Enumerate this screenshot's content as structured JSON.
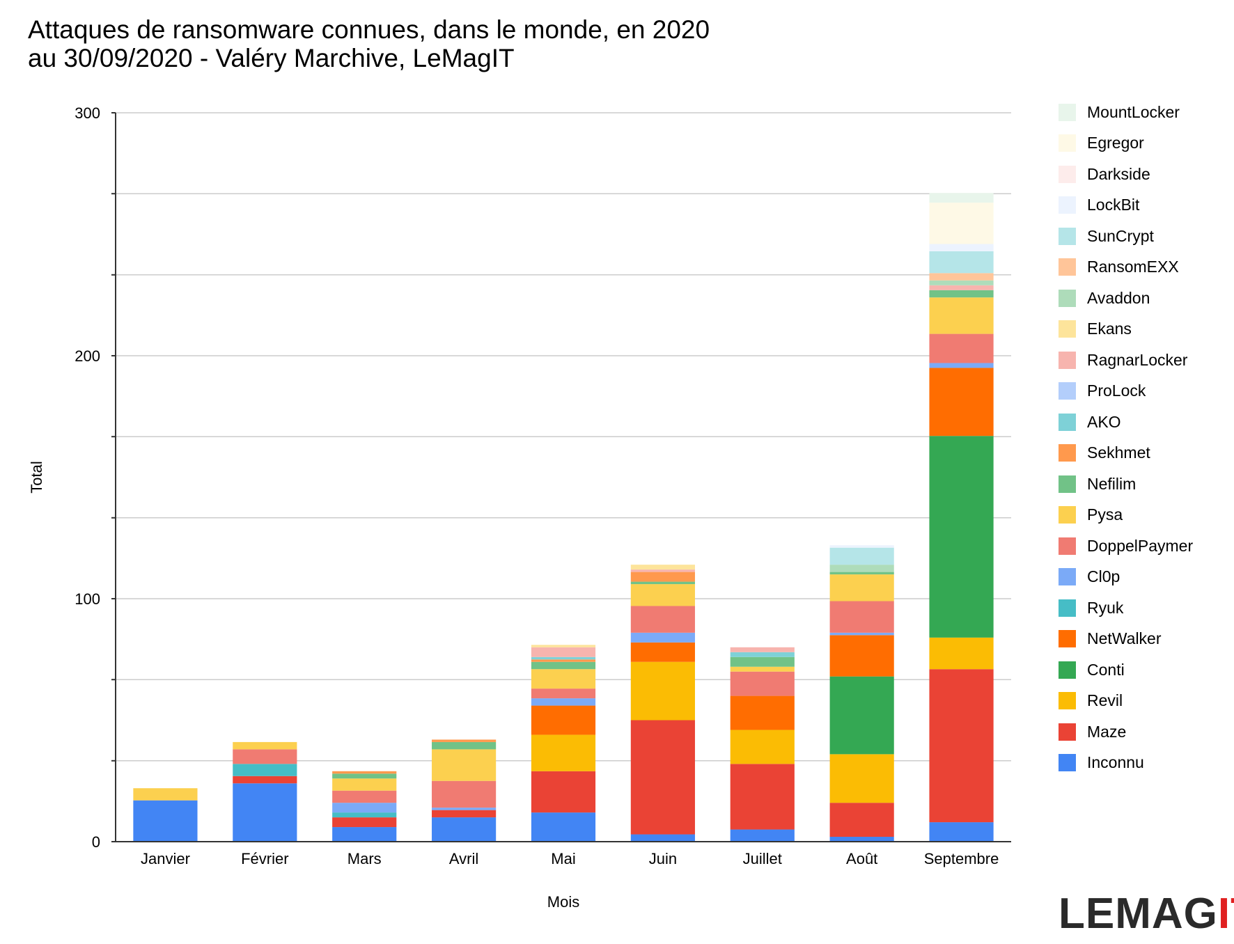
{
  "title": "Attaques de ransomware connues, dans le monde, en 2020",
  "subtitle": "au 30/09/2020 - Valéry Marchive, LeMagIT",
  "logo": {
    "main": "LEMAG",
    "accent": "IT",
    "accent_color": "#e02020"
  },
  "chart_data": {
    "type": "bar",
    "stacked": true,
    "title": "Attaques de ransomware connues, dans le monde, en 2020",
    "subtitle": "au 30/09/2020 - Valéry Marchive, LeMagIT",
    "xlabel": "Mois",
    "ylabel": "Total",
    "ylim": [
      0,
      300
    ],
    "yticks": [
      0,
      100,
      200,
      300
    ],
    "minor_ticks": [
      33.3,
      66.7,
      133.3,
      166.7,
      233.3,
      266.7
    ],
    "grid": true,
    "legend_position": "right",
    "categories": [
      "Janvier",
      "Février",
      "Mars",
      "Avril",
      "Mai",
      "Juin",
      "Juillet",
      "Août",
      "Septembre"
    ],
    "series": [
      {
        "name": "Inconnu",
        "color": "#4285f4",
        "values": [
          17,
          24,
          6,
          10,
          12,
          3,
          5,
          2,
          8
        ]
      },
      {
        "name": "Maze",
        "color": "#ea4335",
        "values": [
          0,
          3,
          4,
          3,
          17,
          47,
          27,
          14,
          63
        ]
      },
      {
        "name": "Revil",
        "color": "#fbbc04",
        "values": [
          0,
          0,
          0,
          0,
          15,
          24,
          14,
          20,
          13
        ]
      },
      {
        "name": "Conti",
        "color": "#34a853",
        "values": [
          0,
          0,
          0,
          0,
          0,
          0,
          0,
          32,
          83
        ]
      },
      {
        "name": "NetWalker",
        "color": "#ff6d01",
        "values": [
          0,
          0,
          0,
          0,
          12,
          8,
          14,
          17,
          28
        ]
      },
      {
        "name": "Ryuk",
        "color": "#46bdc6",
        "values": [
          0,
          5,
          2,
          0,
          0,
          0,
          0,
          0,
          0
        ]
      },
      {
        "name": "Cl0p",
        "color": "#7baaf7",
        "values": [
          0,
          0,
          4,
          1,
          3,
          4,
          0,
          1,
          2
        ]
      },
      {
        "name": "DoppelPaymer",
        "color": "#f07b72",
        "values": [
          0,
          6,
          5,
          11,
          4,
          11,
          10,
          13,
          12
        ]
      },
      {
        "name": "Pysa",
        "color": "#fcd04f",
        "values": [
          5,
          3,
          5,
          13,
          8,
          9,
          2,
          11,
          15
        ]
      },
      {
        "name": "Nefilim",
        "color": "#71c287",
        "values": [
          0,
          0,
          2,
          3,
          3,
          1,
          4,
          1,
          3
        ]
      },
      {
        "name": "Sekhmet",
        "color": "#ff994d",
        "values": [
          0,
          0,
          1,
          1,
          1,
          4,
          0,
          0,
          0
        ]
      },
      {
        "name": "AKO",
        "color": "#7ed1d7",
        "values": [
          0,
          0,
          0,
          0,
          1,
          0,
          2,
          0,
          0
        ]
      },
      {
        "name": "ProLock",
        "color": "#b3cefb",
        "values": [
          0,
          0,
          0,
          0,
          0,
          0,
          0,
          0,
          0
        ]
      },
      {
        "name": "RagnarLocker",
        "color": "#f7b4ae",
        "values": [
          0,
          0,
          0,
          0,
          4,
          1,
          2,
          0,
          2
        ]
      },
      {
        "name": "Ekans",
        "color": "#fde49b",
        "values": [
          0,
          0,
          0,
          0,
          1,
          2,
          0,
          0,
          0
        ]
      },
      {
        "name": "Avaddon",
        "color": "#aedcba",
        "values": [
          0,
          0,
          0,
          0,
          0,
          0,
          0,
          3,
          2
        ]
      },
      {
        "name": "RansomEXX",
        "color": "#ffc599",
        "values": [
          0,
          0,
          0,
          0,
          0,
          0,
          0,
          0,
          3
        ]
      },
      {
        "name": "SunCrypt",
        "color": "#b5e5e8",
        "values": [
          0,
          0,
          0,
          0,
          0,
          0,
          0,
          7,
          9
        ]
      },
      {
        "name": "LockBit",
        "color": "#ecf3fe",
        "values": [
          0,
          0,
          0,
          0,
          0,
          0,
          0,
          1,
          3
        ]
      },
      {
        "name": "Darkside",
        "color": "#fdeceb",
        "values": [
          0,
          0,
          0,
          0,
          0,
          0,
          0,
          0,
          0
        ]
      },
      {
        "name": "Egregor",
        "color": "#fef9e6",
        "values": [
          0,
          0,
          0,
          0,
          0,
          0,
          0,
          0,
          17
        ]
      },
      {
        "name": "MountLocker",
        "color": "#e8f5eb",
        "values": [
          0,
          0,
          0,
          0,
          0,
          0,
          0,
          0,
          4
        ]
      }
    ]
  }
}
